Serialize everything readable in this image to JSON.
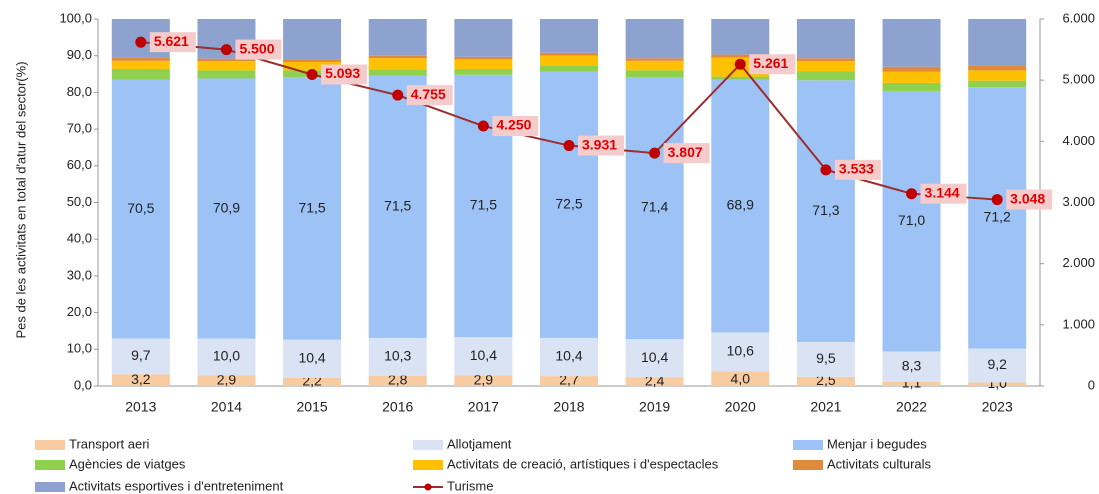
{
  "chart_data": {
    "type": "bar",
    "stacked": true,
    "y_label": "Pes de les activitats en total d'atur del sector(%)",
    "categories": [
      "2013",
      "2014",
      "2015",
      "2016",
      "2017",
      "2018",
      "2019",
      "2020",
      "2021",
      "2022",
      "2023"
    ],
    "ylim": [
      0,
      100
    ],
    "yticks": [
      {
        "value": 0,
        "label": "0,0"
      },
      {
        "value": 10,
        "label": "10,0"
      },
      {
        "value": 20,
        "label": "20,0"
      },
      {
        "value": 30,
        "label": "30,0"
      },
      {
        "value": 40,
        "label": "40,0"
      },
      {
        "value": 50,
        "label": "50,0"
      },
      {
        "value": 60,
        "label": "60,0"
      },
      {
        "value": 70,
        "label": "70,0"
      },
      {
        "value": 80,
        "label": "80,0"
      },
      {
        "value": 90,
        "label": "90,0"
      },
      {
        "value": 100,
        "label": "100,0"
      }
    ],
    "y2lim": [
      0,
      6000
    ],
    "y2ticks": [
      0,
      {
        "value": 1000,
        "label": "1.000"
      },
      {
        "value": 2000,
        "label": "2.000"
      },
      {
        "value": 3000,
        "label": "3.000"
      },
      {
        "value": 4000,
        "label": "4.000"
      },
      {
        "value": 5000,
        "label": "5.000"
      },
      {
        "value": 6000,
        "label": "6.000"
      }
    ],
    "series": [
      {
        "name": "Transport aeri",
        "color": "#f8cba0",
        "values": [
          3.2,
          2.9,
          2.2,
          2.8,
          2.9,
          2.7,
          2.4,
          4.0,
          2.5,
          1.1,
          1.0
        ],
        "value_labels": [
          "3,2",
          "2,9",
          "2,2",
          "2,8",
          "2,9",
          "2,7",
          "2,4",
          "4,0",
          "2,5",
          "1,1",
          "1,0"
        ]
      },
      {
        "name": "Allotjament",
        "color": "#dae3f3",
        "values": [
          9.7,
          10.0,
          10.4,
          10.3,
          10.4,
          10.4,
          10.4,
          10.6,
          9.5,
          8.3,
          9.2
        ],
        "value_labels": [
          "9,7",
          "10,0",
          "10,4",
          "10,3",
          "10,4",
          "10,4",
          "10,4",
          "10,6",
          "9,5",
          "8,3",
          "9,2"
        ]
      },
      {
        "name": "Menjar i begudes",
        "color": "#9dc3f6",
        "values": [
          70.5,
          70.9,
          71.5,
          71.5,
          71.5,
          72.5,
          71.4,
          68.9,
          71.3,
          71.0,
          71.2
        ],
        "value_labels": [
          "70,5",
          "70,9",
          "71,5",
          "71,5",
          "71,5",
          "72,5",
          "71,4",
          "68,9",
          "71,3",
          "71,0",
          "71,2"
        ]
      },
      {
        "name": "Agències de viatges",
        "color": "#8fd14f",
        "values": [
          3.0,
          2.2,
          1.9,
          1.7,
          1.6,
          1.6,
          1.8,
          0.8,
          2.5,
          2.2,
          1.8
        ]
      },
      {
        "name": "Activitats de creació, artístiques i d'espectacles",
        "color": "#ffc000",
        "values": [
          2.2,
          2.5,
          2.3,
          3.0,
          2.6,
          2.8,
          2.6,
          5.2,
          2.7,
          3.0,
          2.8
        ]
      },
      {
        "name": "Activitats culturals",
        "color": "#e08a3c",
        "values": [
          0.8,
          0.7,
          0.7,
          0.7,
          0.7,
          0.8,
          0.7,
          0.8,
          0.8,
          1.4,
          1.3
        ]
      },
      {
        "name": "Activitats esportives i d'entreteniment",
        "color": "#8ea2d0",
        "values": [
          10.6,
          10.8,
          11.0,
          10.0,
          10.3,
          9.2,
          10.7,
          9.7,
          10.7,
          13.0,
          12.7
        ]
      },
      {
        "name": "Turisme",
        "type": "line",
        "axis": "y2",
        "color": "#c00000",
        "values": [
          5621,
          5500,
          5093,
          4755,
          4250,
          3931,
          3807,
          5261,
          3533,
          3144,
          3048
        ],
        "value_labels": [
          "5.621",
          "5.500",
          "5.093",
          "4.755",
          "4.250",
          "3.931",
          "3.807",
          "5.261",
          "3.533",
          "3.144",
          "3.048"
        ]
      }
    ]
  }
}
